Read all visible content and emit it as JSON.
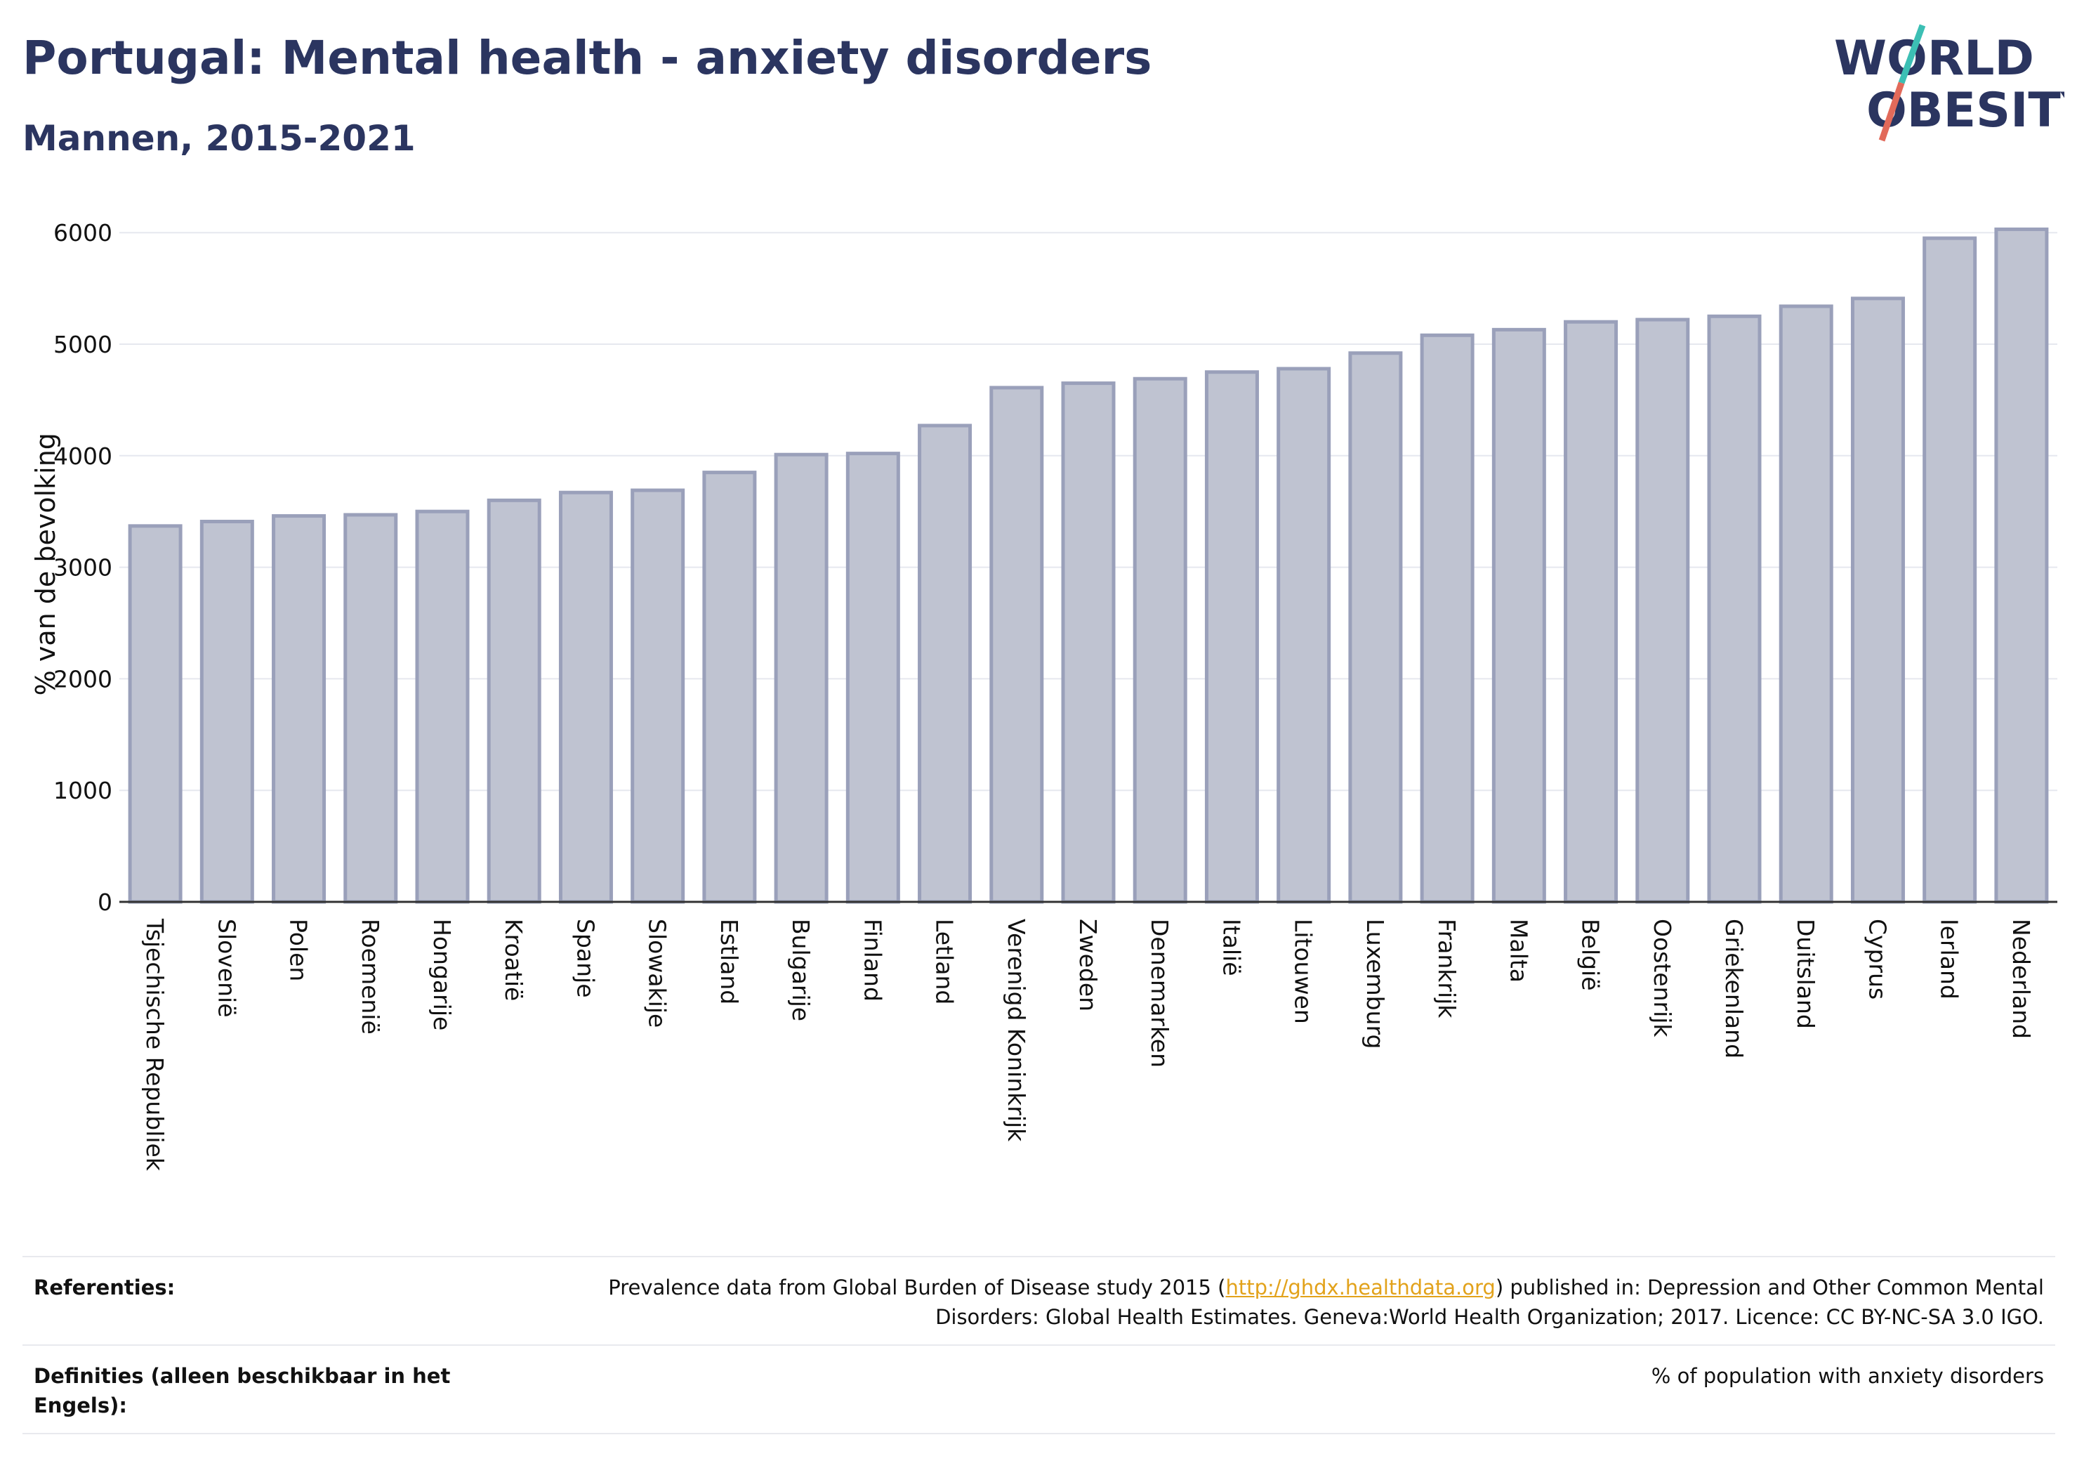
{
  "header": {
    "title": "Portugal: Mental health - anxiety disorders",
    "subtitle": "Mannen, 2015-2021"
  },
  "logo": {
    "line1": "WORLD",
    "line2": "OBESITY",
    "accent_colors": [
      "#3cbfb4",
      "#e26a5a"
    ]
  },
  "colors": {
    "bar_fill": "#bfc3d1",
    "bar_stroke": "#9aa0ba",
    "title": "#2b3560",
    "link": "#e2a21b"
  },
  "chart_data": {
    "type": "bar",
    "title": "Portugal: Mental health - anxiety disorders",
    "subtitle": "Mannen, 2015-2021",
    "xlabel": "",
    "ylabel": "% van de bevolking",
    "ylim": [
      0,
      6200
    ],
    "yticks": [
      0,
      1000,
      2000,
      3000,
      4000,
      5000,
      6000
    ],
    "grid": true,
    "categories": [
      "Tsjechische Republiek",
      "Slovenië",
      "Polen",
      "Roemenië",
      "Hongarije",
      "Kroatië",
      "Spanje",
      "Slowakije",
      "Estland",
      "Bulgarije",
      "Finland",
      "Letland",
      "Verenigd Koninkrijk",
      "Zweden",
      "Denemarken",
      "Italië",
      "Litouwen",
      "Luxemburg",
      "Frankrijk",
      "Malta",
      "België",
      "Oostenrijk",
      "Griekenland",
      "Duitsland",
      "Cyprus",
      "Ierland",
      "Nederland"
    ],
    "values": [
      3370,
      3410,
      3460,
      3470,
      3500,
      3600,
      3670,
      3690,
      3850,
      4010,
      4020,
      4270,
      4610,
      4650,
      4690,
      4750,
      4780,
      4920,
      5080,
      5130,
      5200,
      5220,
      5250,
      5340,
      5410,
      5950,
      6030
    ]
  },
  "footer": {
    "references_label": "Referenties:",
    "references_text_before": "Prevalence data from Global Burden of Disease study 2015 (",
    "references_link": "http://ghdx.healthdata.org",
    "references_text_after": ") published in: Depression and Other Common Mental Disorders: Global Health Estimates. Geneva:World Health Organization; 2017. Licence: CC BY-NC-SA 3.0 IGO.",
    "definitions_label": "Definities (alleen beschikbaar in het Engels):",
    "definitions_text": "% of population with anxiety disorders"
  }
}
